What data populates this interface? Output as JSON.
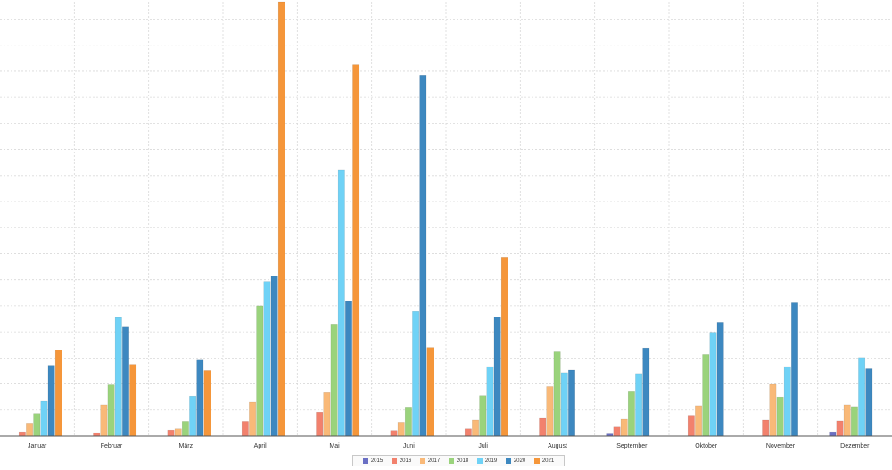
{
  "chart_data": {
    "type": "bar",
    "title": "",
    "xlabel": "",
    "ylabel": "",
    "ylim": [
      0,
      100
    ],
    "grid": true,
    "legend_position": "bottom-center",
    "categories": [
      "Januar",
      "Februar",
      "März",
      "April",
      "Mai",
      "Juni",
      "Juli",
      "August",
      "September",
      "Oktober",
      "November",
      "Dezember"
    ],
    "series": [
      {
        "name": "2015",
        "color": "#6a6fc4",
        "values": [
          0,
          0,
          0,
          0,
          0,
          0,
          0,
          0,
          0.5,
          0,
          0,
          1
        ]
      },
      {
        "name": "2016",
        "color": "#f2816d",
        "values": [
          1,
          0.8,
          1.4,
          3.4,
          5.5,
          1.3,
          1.7,
          4.1,
          2.1,
          4.8,
          3.7,
          3.5
        ]
      },
      {
        "name": "2017",
        "color": "#f9b978",
        "values": [
          3,
          7.2,
          1.7,
          7.8,
          10,
          3.2,
          3.7,
          11.4,
          3.9,
          7,
          11.9,
          7.2
        ]
      },
      {
        "name": "2018",
        "color": "#9ad37c",
        "values": [
          5.2,
          11.8,
          3.4,
          30,
          25.8,
          6.7,
          9.3,
          19.4,
          10.4,
          18.8,
          9,
          6.8
        ]
      },
      {
        "name": "2019",
        "color": "#6fd2f6",
        "values": [
          8,
          27.3,
          9.2,
          35.6,
          61.2,
          28.7,
          16,
          14.6,
          14.4,
          23.9,
          16,
          18.1
        ]
      },
      {
        "name": "2020",
        "color": "#3d88c0",
        "values": [
          16.3,
          25.1,
          17.5,
          36.9,
          31,
          83.1,
          27.4,
          15.2,
          20.3,
          26.2,
          30.7,
          15.5
        ]
      },
      {
        "name": "2021",
        "color": "#f5963a",
        "values": [
          19.8,
          16.5,
          15.1,
          100,
          85.5,
          20.4,
          41.2,
          0,
          0,
          0,
          0,
          0
        ]
      }
    ]
  }
}
